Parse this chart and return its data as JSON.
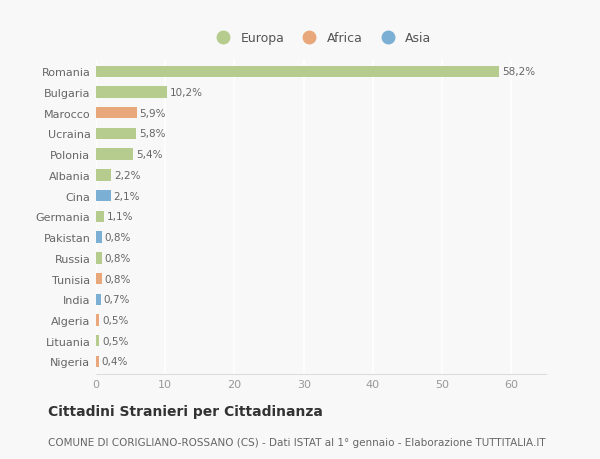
{
  "countries": [
    "Romania",
    "Bulgaria",
    "Marocco",
    "Ucraina",
    "Polonia",
    "Albania",
    "Cina",
    "Germania",
    "Pakistan",
    "Russia",
    "Tunisia",
    "India",
    "Algeria",
    "Lituania",
    "Nigeria"
  ],
  "values": [
    58.2,
    10.2,
    5.9,
    5.8,
    5.4,
    2.2,
    2.1,
    1.1,
    0.8,
    0.8,
    0.8,
    0.7,
    0.5,
    0.5,
    0.4
  ],
  "labels": [
    "58,2%",
    "10,2%",
    "5,9%",
    "5,8%",
    "5,4%",
    "2,2%",
    "2,1%",
    "1,1%",
    "0,8%",
    "0,8%",
    "0,8%",
    "0,7%",
    "0,5%",
    "0,5%",
    "0,4%"
  ],
  "continent": [
    "Europa",
    "Europa",
    "Africa",
    "Europa",
    "Europa",
    "Europa",
    "Asia",
    "Europa",
    "Asia",
    "Europa",
    "Africa",
    "Asia",
    "Africa",
    "Europa",
    "Africa"
  ],
  "colors": {
    "Europa": "#b5cc8e",
    "Africa": "#e8a87c",
    "Asia": "#7bafd4"
  },
  "xlim": [
    0,
    65
  ],
  "xticks": [
    0,
    10,
    20,
    30,
    40,
    50,
    60
  ],
  "title": "Cittadini Stranieri per Cittadinanza",
  "subtitle": "COMUNE DI CORIGLIANO-ROSSANO (CS) - Dati ISTAT al 1° gennaio - Elaborazione TUTTITALIA.IT",
  "background_color": "#f8f8f8",
  "grid_color": "#ffffff",
  "bar_height": 0.55,
  "title_fontsize": 10,
  "subtitle_fontsize": 7.5,
  "label_fontsize": 7.5,
  "tick_fontsize": 8,
  "legend_fontsize": 9
}
